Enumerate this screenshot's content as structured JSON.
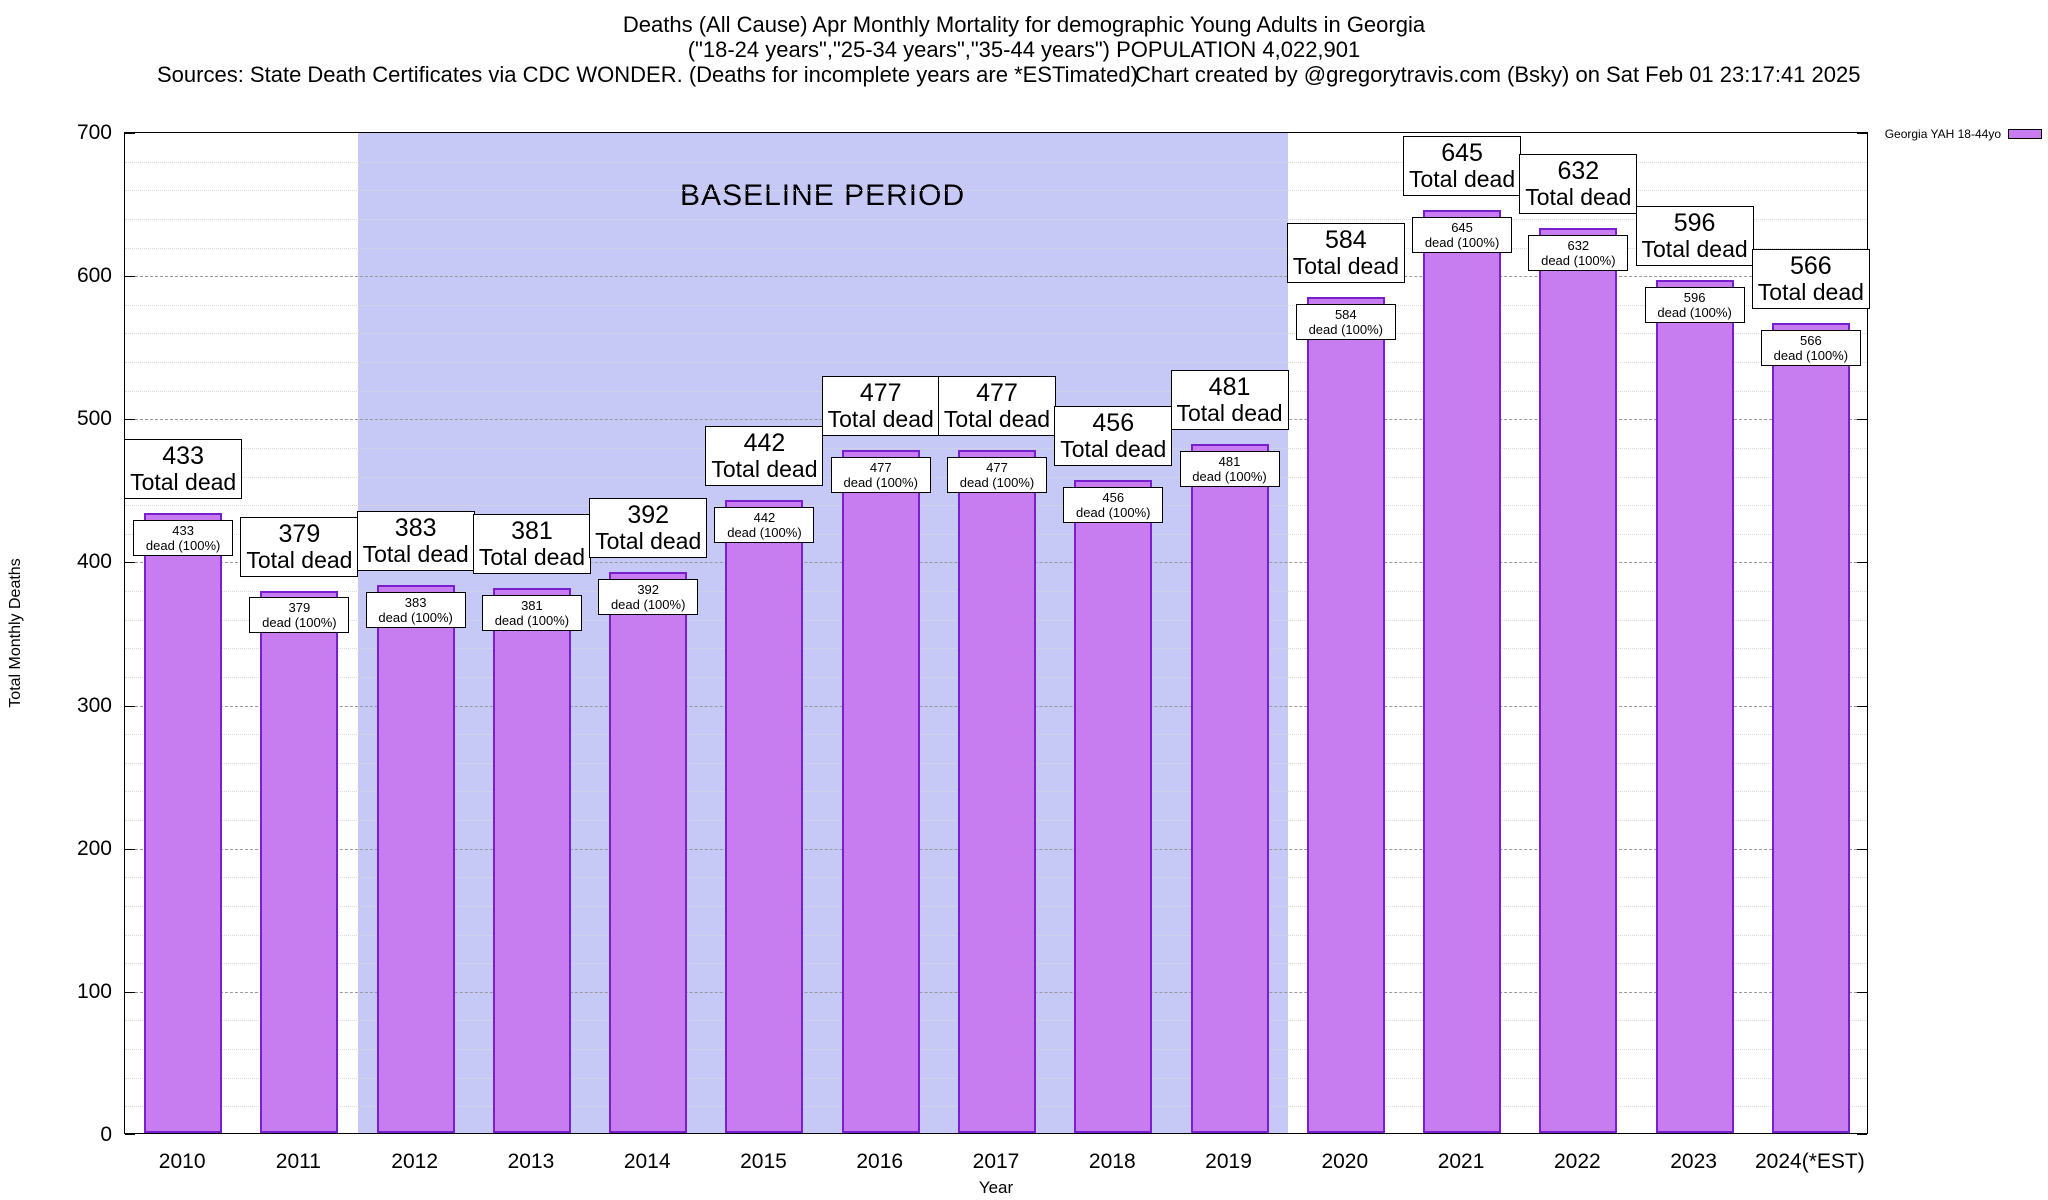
{
  "header": {
    "title_line1": "Deaths (All Cause) Apr Monthly Mortality for demographic Young Adults in Georgia",
    "title_line2": "(\"18-24 years\",\"25-34 years\",\"35-44 years\") POPULATION 4,022,901",
    "sources": "Sources: State Death Certificates via CDC WONDER. (Deaths for incomplete years are *ESTimated)",
    "credit": "Chart created by @gregorytravis.com (Bsky) on Sat Feb 01 23:17:41 2025"
  },
  "legend": {
    "label": "Georgia YAH 18-44yo"
  },
  "chart_data": {
    "type": "bar",
    "title": "Deaths (All Cause) Apr Monthly Mortality for demographic Young Adults in Georgia",
    "xlabel": "Year",
    "ylabel": "Total Monthly Deaths",
    "categories": [
      "2010",
      "2011",
      "2012",
      "2013",
      "2014",
      "2015",
      "2016",
      "2017",
      "2018",
      "2019",
      "2020",
      "2021",
      "2022",
      "2023",
      "2024(*EST)"
    ],
    "values": [
      433,
      379,
      383,
      381,
      392,
      442,
      477,
      477,
      456,
      481,
      584,
      645,
      632,
      596,
      566
    ],
    "series_name": "Georgia YAH 18-44yo",
    "ylim": [
      0,
      700
    ],
    "yticks": [
      0,
      100,
      200,
      300,
      400,
      500,
      600,
      700
    ],
    "grid": "horizontal-dashed",
    "legend_position": "top-right-outside",
    "bar_label_suffix": "Total dead",
    "bar_inner_suffix": "dead (100%)",
    "baseline": {
      "label": "BASELINE PERIOD",
      "start_category": "2012",
      "end_category": "2019"
    },
    "colors": {
      "bar_fill": "#c77df0",
      "bar_border": "#7a1fd0",
      "baseline_bg": "#c6c8f6"
    }
  }
}
